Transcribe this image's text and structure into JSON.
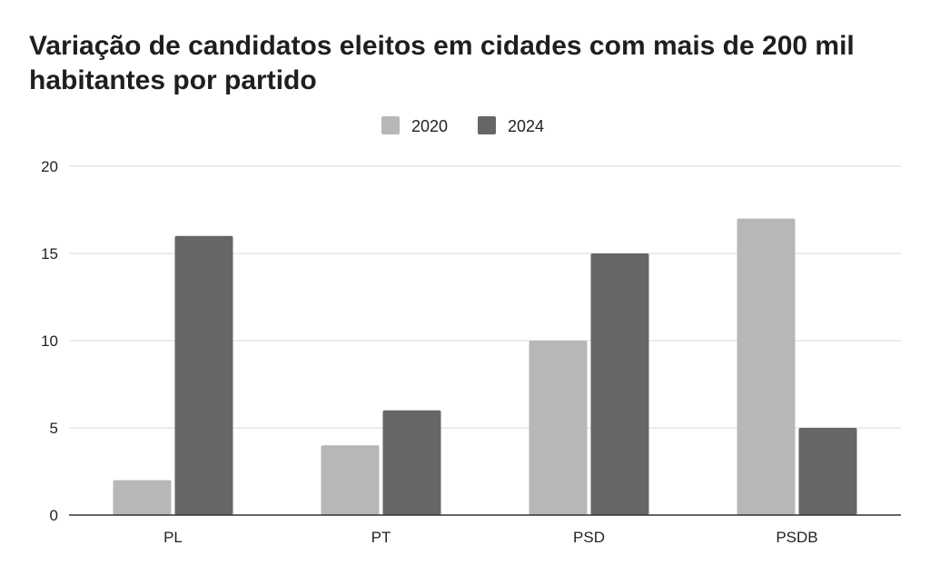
{
  "chart_data": {
    "type": "bar",
    "title": "Variação de candidatos eleitos em cidades com mais de 200 mil habitantes por partido",
    "categories": [
      "PL",
      "PT",
      "PSD",
      "PSDB"
    ],
    "series": [
      {
        "name": "2020",
        "values": [
          2,
          4,
          10,
          17
        ],
        "color": "#b7b7b7"
      },
      {
        "name": "2024",
        "values": [
          16,
          6,
          15,
          5
        ],
        "color": "#666666"
      }
    ],
    "ylim": [
      0,
      20
    ],
    "yticks": [
      0,
      5,
      10,
      15,
      20
    ],
    "grid": true,
    "legend_position": "top-center",
    "xlabel": "",
    "ylabel": ""
  }
}
